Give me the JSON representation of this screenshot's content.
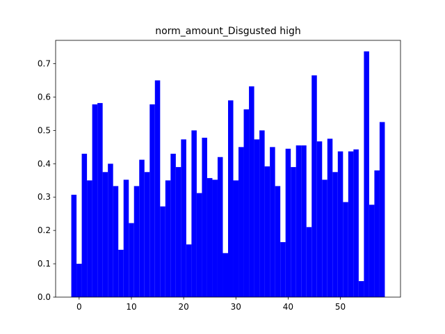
{
  "chart_data": {
    "type": "bar",
    "title": "norm_amount_Disgusted high",
    "color": "#0000ff",
    "x": [
      -1,
      0,
      1,
      2,
      3,
      4,
      5,
      6,
      7,
      8,
      9,
      10,
      11,
      12,
      13,
      14,
      15,
      16,
      17,
      18,
      19,
      20,
      21,
      22,
      23,
      24,
      25,
      26,
      27,
      28,
      29,
      30,
      31,
      32,
      33,
      34,
      35,
      36,
      37,
      38,
      39,
      40,
      41,
      42,
      43,
      44,
      45,
      46,
      47,
      48,
      49,
      50,
      51,
      52,
      53,
      54,
      55,
      56,
      57,
      58
    ],
    "values": [
      0.307,
      0.1,
      0.43,
      0.35,
      0.578,
      0.582,
      0.375,
      0.4,
      0.333,
      0.142,
      0.352,
      0.222,
      0.333,
      0.412,
      0.375,
      0.578,
      0.65,
      0.272,
      0.35,
      0.43,
      0.39,
      0.473,
      0.158,
      0.5,
      0.312,
      0.478,
      0.357,
      0.352,
      0.42,
      0.132,
      0.59,
      0.35,
      0.45,
      0.563,
      0.632,
      0.473,
      0.5,
      0.392,
      0.45,
      0.333,
      0.165,
      0.445,
      0.39,
      0.455,
      0.455,
      0.21,
      0.665,
      0.467,
      0.352,
      0.475,
      0.375,
      0.437,
      0.285,
      0.437,
      0.443,
      0.048,
      0.737,
      0.277,
      0.38,
      0.525
    ],
    "xlim": [
      -4.5,
      61.5
    ],
    "xticks": [
      0,
      10,
      20,
      30,
      40,
      50
    ],
    "ylim": [
      0,
      0.77
    ],
    "yticks": [
      {
        "value": 0,
        "label": "0.0"
      },
      {
        "value": 0.1,
        "label": "0.1"
      },
      {
        "value": 0.2,
        "label": "0.2"
      },
      {
        "value": 0.3,
        "label": "0.3"
      },
      {
        "value": 0.4,
        "label": "0.4"
      },
      {
        "value": 0.5,
        "label": "0.5"
      },
      {
        "value": 0.6,
        "label": "0.6"
      },
      {
        "value": 0.7,
        "label": "0.7"
      }
    ]
  }
}
